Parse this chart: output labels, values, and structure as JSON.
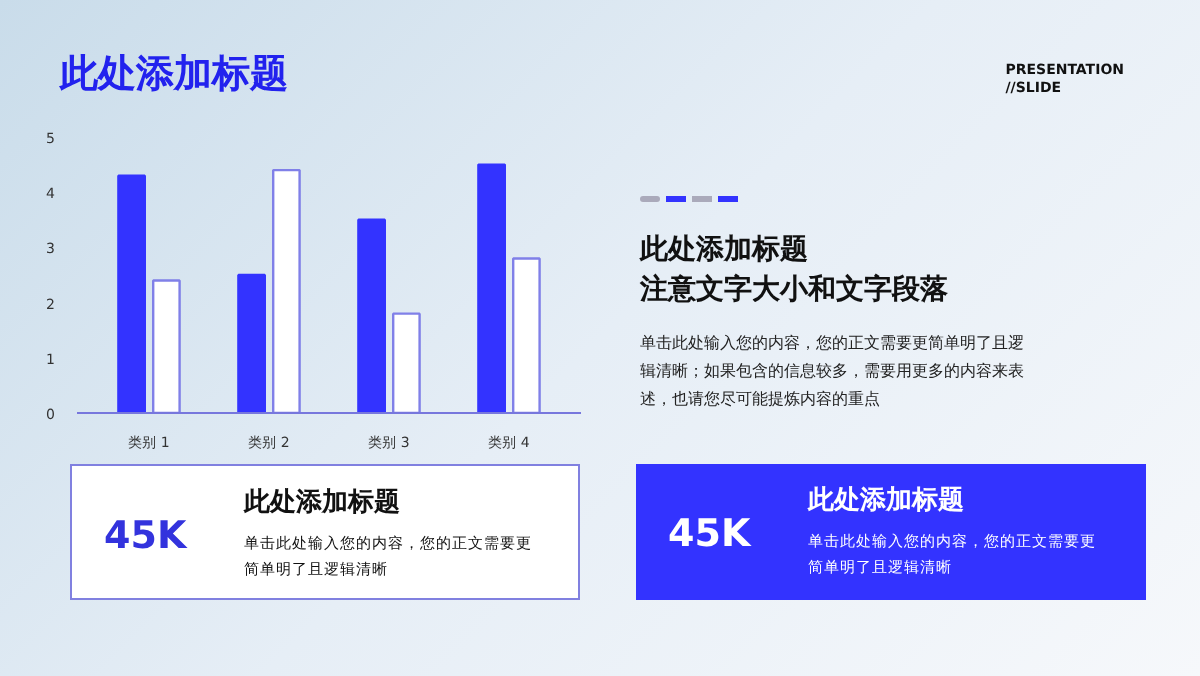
{
  "chart_data": [
    {
      "type": "other",
      "title": "此处添加标题",
      "annotations": [
        "PRESENTATION",
        "//SLIDE"
      ]
    },
    {
      "type": "bar",
      "categories": [
        "类别 1",
        "类别 2",
        "类别 3",
        "类别 4"
      ],
      "ylim": [
        0,
        5
      ],
      "yticks": [
        0,
        1,
        2,
        3,
        4,
        5
      ],
      "grid": false,
      "series": [
        {
          "color": "#3333ff",
          "values": [
            4.3,
            2.5,
            3.5,
            4.5
          ]
        },
        {
          "color": "#8080e8",
          "values": [
            2.4,
            4.4,
            1.8,
            2.8
          ]
        }
      ]
    },
    {
      "type": "other",
      "title": "此处添加标题",
      "subtitle": "注意文字大小和文字段落",
      "annotations": [
        "单击此处输入您的内容，您的正文需要更简单明了且逻辑清晰；如果包含的信息较多，需要用更多的内容来表述，也请您尽可能提炼内容的重点"
      ]
    },
    {
      "type": "other",
      "title": "此处添加标题",
      "color": "#ffffff",
      "annotations": [
        "45K",
        "单击此处输入您的内容，您的正文需要更简单明了且逻辑清晰"
      ]
    },
    {
      "type": "other",
      "title": "此处添加标题",
      "color": "#3333ff",
      "annotations": [
        "45K",
        "单击此处输入您的内容，您的正文需要更简单明了且逻辑清晰"
      ]
    }
  ]
}
